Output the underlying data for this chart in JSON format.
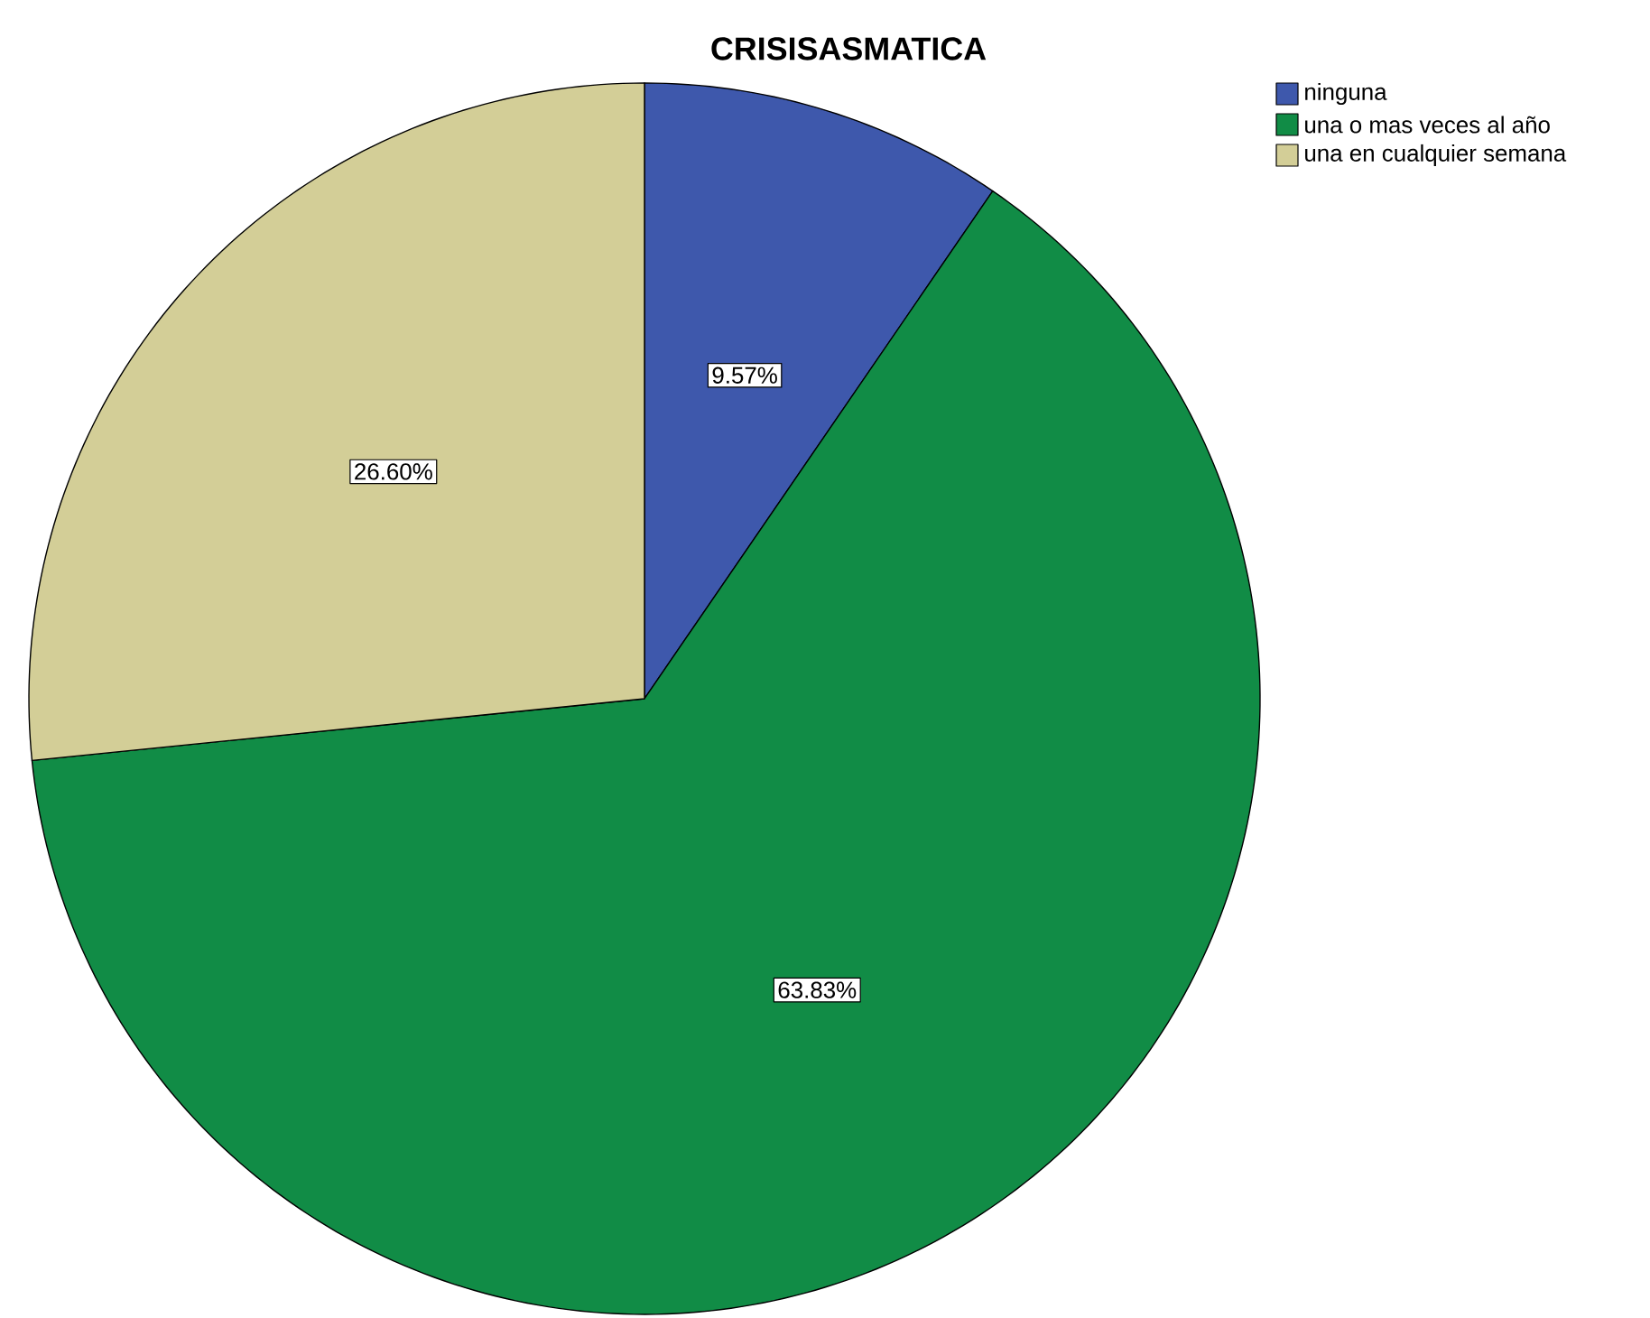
{
  "chart_data": {
    "type": "pie",
    "title": "CRISISASMATICA",
    "categories": [
      "ninguna",
      "una o mas veces al año",
      "una en cualquier semana"
    ],
    "values": [
      9.57,
      63.83,
      26.6
    ],
    "value_labels": [
      "9.57%",
      "63.83%",
      "26.60%"
    ],
    "colors": [
      "#3e58ac",
      "#118c46",
      "#d3ce97"
    ],
    "legend": "top right"
  }
}
